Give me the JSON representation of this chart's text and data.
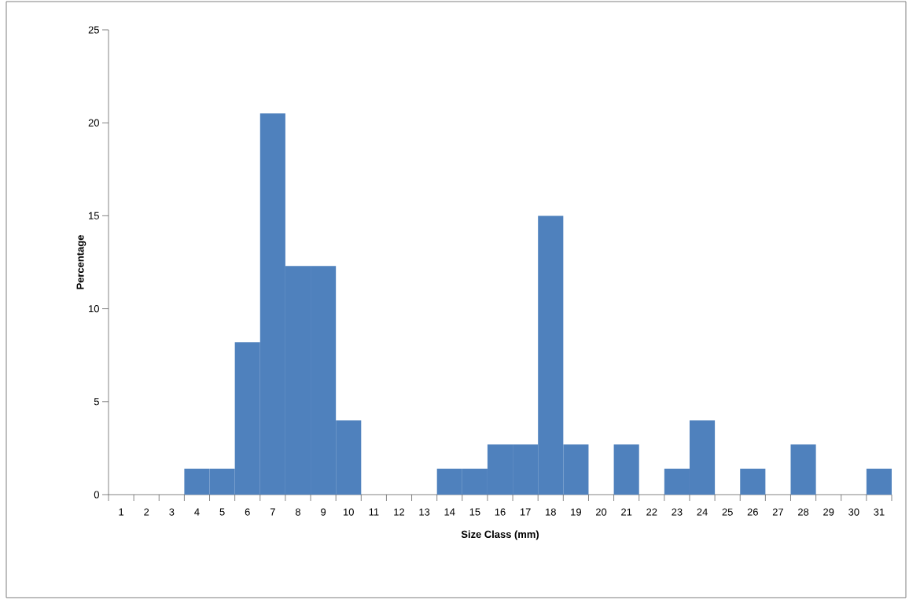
{
  "chart_data": {
    "type": "bar",
    "xlabel": "Size Class (mm)",
    "ylabel": "Percentage",
    "categories": [
      "1",
      "2",
      "3",
      "4",
      "5",
      "6",
      "7",
      "8",
      "9",
      "10",
      "11",
      "12",
      "13",
      "14",
      "15",
      "16",
      "17",
      "18",
      "19",
      "20",
      "21",
      "22",
      "23",
      "24",
      "25",
      "26",
      "27",
      "28",
      "29",
      "30",
      "31"
    ],
    "values": [
      0,
      0,
      0,
      1.4,
      1.4,
      8.2,
      20.5,
      12.3,
      12.3,
      4,
      0,
      0,
      0,
      1.4,
      1.4,
      2.7,
      2.7,
      15,
      2.7,
      0,
      2.7,
      0,
      1.4,
      4,
      0,
      1.4,
      0,
      2.7,
      0,
      0,
      1.4
    ],
    "color": "#4f81bd",
    "ylim": [
      0,
      25
    ],
    "yticks": [
      0,
      5,
      10,
      15,
      20,
      25
    ]
  }
}
